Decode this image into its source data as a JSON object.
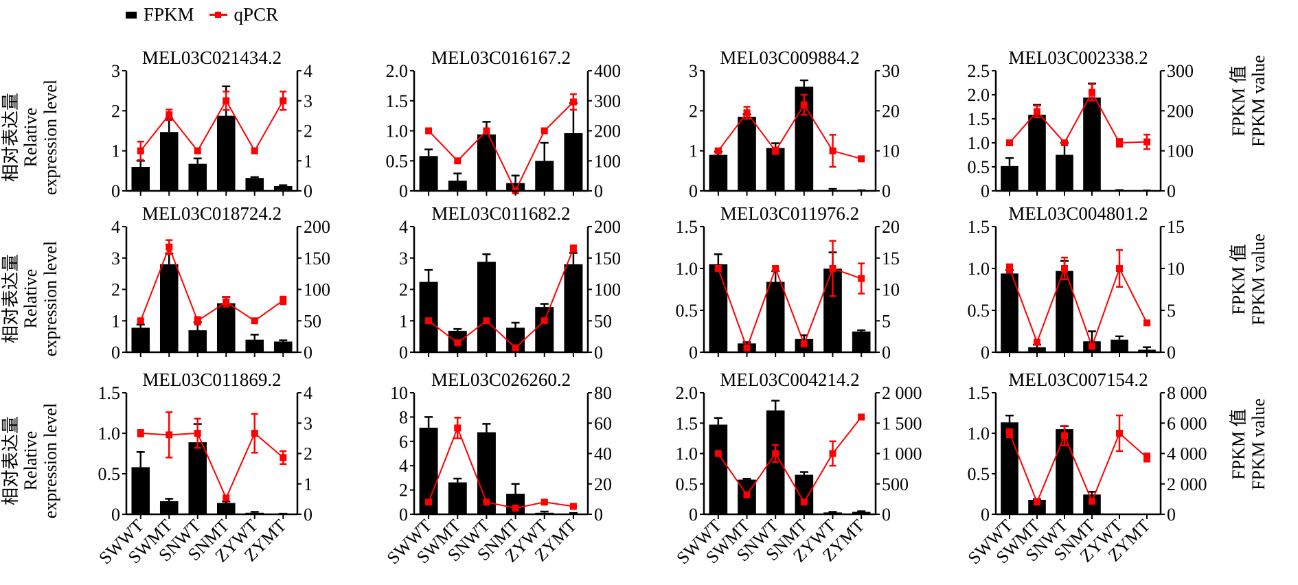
{
  "legend": {
    "bar_label": "FPKM",
    "line_label": "qPCR",
    "bar_color": "#000000",
    "line_color": "#ff0000"
  },
  "axis_titles": {
    "left_cn": "相对表达量",
    "left_en_1": "Relative",
    "left_en_2": "expression level",
    "right_cn": "FPKM 值",
    "right_en": "FPKM value"
  },
  "chart_data": [
    {
      "type": "bar+line",
      "title": "MEL03C021434.2",
      "categories": [
        "SWWT",
        "SWMT",
        "SNWT",
        "SNMT",
        "ZYWT",
        "ZYMT"
      ],
      "left_ticks": [
        "0",
        "1",
        "2",
        "3"
      ],
      "left_ylim": [
        0,
        3
      ],
      "right_ticks": [
        "0",
        "1",
        "2",
        "3",
        "4"
      ],
      "right_ylim": [
        0,
        4
      ],
      "series": [
        {
          "name": "FPKM",
          "axis": "right",
          "type": "bar",
          "values": [
            0.8,
            1.96,
            0.9,
            2.5,
            0.43,
            0.16
          ],
          "errors": [
            0.2,
            0.45,
            0.18,
            0.98,
            0.03,
            0.03
          ]
        },
        {
          "name": "qPCR",
          "axis": "left",
          "type": "line",
          "values": [
            1.0,
            1.9,
            1.0,
            2.25,
            1.0,
            2.25
          ],
          "errors": [
            0.23,
            0.13,
            0.02,
            0.23,
            0.02,
            0.23
          ]
        }
      ]
    },
    {
      "type": "bar+line",
      "title": "MEL03C016167.2",
      "categories": [
        "SWWT",
        "SWMT",
        "SNWT",
        "SNMT",
        "ZYWT",
        "ZYMT"
      ],
      "left_ticks": [
        "0",
        "0.5",
        "1.0",
        "1.5",
        "2.0"
      ],
      "left_ylim": [
        0,
        2
      ],
      "right_ticks": [
        "0",
        "100",
        "200",
        "300",
        "400"
      ],
      "right_ylim": [
        0,
        400
      ],
      "series": [
        {
          "name": "FPKM",
          "axis": "right",
          "type": "bar",
          "values": [
            116,
            34,
            188,
            26,
            100,
            192
          ],
          "errors": [
            22,
            24,
            42,
            25,
            60,
            100
          ]
        },
        {
          "name": "qPCR",
          "axis": "left",
          "type": "line",
          "values": [
            1.0,
            0.5,
            1.0,
            0.0,
            1.0,
            1.48
          ],
          "errors": [
            0.02,
            0.02,
            0.02,
            0.02,
            0.02,
            0.13
          ]
        }
      ]
    },
    {
      "type": "bar+line",
      "title": "MEL03C009884.2",
      "categories": [
        "SWWT",
        "SWMT",
        "SNWT",
        "SNMT",
        "ZYWT",
        "ZYMT"
      ],
      "left_ticks": [
        "0",
        "1",
        "2",
        "3"
      ],
      "left_ylim": [
        0,
        3
      ],
      "right_ticks": [
        "0",
        "10",
        "20",
        "30"
      ],
      "right_ylim": [
        0,
        30
      ],
      "series": [
        {
          "name": "FPKM",
          "axis": "right",
          "type": "bar",
          "values": [
            9,
            18.5,
            10.7,
            26,
            0.1,
            0.05
          ],
          "errors": [
            0.8,
            0.6,
            1.2,
            1.6,
            0.4,
            0.1
          ]
        },
        {
          "name": "qPCR",
          "axis": "left",
          "type": "line",
          "values": [
            1.0,
            1.95,
            1.0,
            2.15,
            1.0,
            0.8
          ],
          "errors": [
            0.05,
            0.15,
            0.08,
            0.25,
            0.4,
            0.04
          ]
        }
      ]
    },
    {
      "type": "bar+line",
      "title": "MEL03C002338.2",
      "categories": [
        "SWWT",
        "SWMT",
        "SNWT",
        "SNMT",
        "ZYWT",
        "ZYMT"
      ],
      "left_ticks": [
        "0",
        "0.5",
        "1.0",
        "1.5",
        "2.0",
        "2.5"
      ],
      "left_ylim": [
        0,
        2.5
      ],
      "right_ticks": [
        "0",
        "100",
        "200",
        "300"
      ],
      "right_ylim": [
        0,
        300
      ],
      "series": [
        {
          "name": "FPKM",
          "axis": "right",
          "type": "bar",
          "values": [
            62,
            190,
            90,
            233,
            1,
            0.5
          ],
          "errors": [
            20,
            25,
            30,
            35,
            1,
            0.5
          ]
        },
        {
          "name": "qPCR",
          "axis": "left",
          "type": "line",
          "values": [
            1.0,
            1.65,
            1.0,
            2.05,
            1.0,
            1.02
          ],
          "errors": [
            0.02,
            0.12,
            0.03,
            0.17,
            0.08,
            0.15
          ]
        }
      ]
    },
    {
      "type": "bar+line",
      "title": "MEL03C018724.2",
      "categories": [
        "SWWT",
        "SWMT",
        "SNWT",
        "SNMT",
        "ZYWT",
        "ZYMT"
      ],
      "left_ticks": [
        "0",
        "1",
        "2",
        "3",
        "4"
      ],
      "left_ylim": [
        0,
        4
      ],
      "right_ticks": [
        "0",
        "50",
        "100",
        "150",
        "200"
      ],
      "right_ylim": [
        0,
        200
      ],
      "series": [
        {
          "name": "FPKM",
          "axis": "right",
          "type": "bar",
          "values": [
            39,
            140,
            35,
            78,
            20,
            17
          ],
          "errors": [
            5,
            17,
            13,
            10,
            8,
            2
          ]
        },
        {
          "name": "qPCR",
          "axis": "left",
          "type": "line",
          "values": [
            1.0,
            3.35,
            1.0,
            1.6,
            1.0,
            1.65
          ],
          "errors": [
            0.05,
            0.22,
            0.12,
            0.15,
            0.05,
            0.12
          ]
        }
      ]
    },
    {
      "type": "bar+line",
      "title": "MEL03C011682.2",
      "categories": [
        "SWWT",
        "SWMT",
        "SNWT",
        "SNMT",
        "ZYWT",
        "ZYMT"
      ],
      "left_ticks": [
        "0",
        "1",
        "2",
        "3",
        "4"
      ],
      "left_ylim": [
        0,
        4
      ],
      "right_ticks": [
        "0",
        "50",
        "100",
        "150",
        "200"
      ],
      "right_ylim": [
        0,
        200
      ],
      "series": [
        {
          "name": "FPKM",
          "axis": "right",
          "type": "bar",
          "values": [
            112,
            34,
            144,
            39,
            72,
            140
          ],
          "errors": [
            19,
            3,
            12,
            8,
            5,
            18
          ]
        },
        {
          "name": "qPCR",
          "axis": "left",
          "type": "line",
          "values": [
            1.0,
            0.3,
            1.0,
            0.14,
            1.0,
            3.3
          ],
          "errors": [
            0.02,
            0.02,
            0.02,
            0.02,
            0.02,
            0.1
          ]
        }
      ]
    },
    {
      "type": "bar+line",
      "title": "MEL03C011976.2",
      "categories": [
        "SWWT",
        "SWMT",
        "SNWT",
        "SNMT",
        "ZYWT",
        "ZYMT"
      ],
      "left_ticks": [
        "0",
        "0.5",
        "1.0",
        "1.5"
      ],
      "left_ylim": [
        0,
        1.5
      ],
      "right_ticks": [
        "0",
        "5",
        "10",
        "15",
        "20"
      ],
      "right_ylim": [
        0,
        20
      ],
      "series": [
        {
          "name": "FPKM",
          "axis": "right",
          "type": "bar",
          "values": [
            14,
            1.4,
            11.2,
            2.1,
            13.3,
            3.3
          ],
          "errors": [
            1.6,
            0.2,
            1.7,
            0.6,
            2.6,
            0.2
          ]
        },
        {
          "name": "qPCR",
          "axis": "left",
          "type": "line",
          "values": [
            1.0,
            0.05,
            1.0,
            0.1,
            1.0,
            0.88
          ],
          "errors": [
            0.02,
            0.02,
            0.02,
            0.02,
            0.33,
            0.18
          ]
        }
      ]
    },
    {
      "type": "bar+line",
      "title": "MEL03C004801.2",
      "categories": [
        "SWWT",
        "SWMT",
        "SNWT",
        "SNMT",
        "ZYWT",
        "ZYMT"
      ],
      "left_ticks": [
        "0",
        "0.5",
        "1.0",
        "1.5"
      ],
      "left_ylim": [
        0,
        1.5
      ],
      "right_ticks": [
        "0",
        "5",
        "10",
        "15"
      ],
      "right_ylim": [
        0,
        15
      ],
      "series": [
        {
          "name": "FPKM",
          "axis": "right",
          "type": "bar",
          "values": [
            9.4,
            0.6,
            9.7,
            1.3,
            1.5,
            0.3
          ],
          "errors": [
            0.4,
            0.3,
            1.2,
            1.2,
            0.4,
            0.3
          ]
        },
        {
          "name": "qPCR",
          "axis": "left",
          "type": "line",
          "values": [
            1.0,
            0.12,
            1.0,
            0.07,
            1.0,
            0.35
          ],
          "errors": [
            0.05,
            0.03,
            0.13,
            0.02,
            0.22,
            0.02
          ]
        }
      ]
    },
    {
      "type": "bar+line",
      "title": "MEL03C011869.2",
      "categories": [
        "SWWT",
        "SWMT",
        "SNWT",
        "SNMT",
        "ZYWT",
        "ZYMT"
      ],
      "left_ticks": [
        "0",
        "0.5",
        "1.0",
        "1.5"
      ],
      "left_ylim": [
        0,
        1.5
      ],
      "right_ticks": [
        "0",
        "1",
        "2",
        "3",
        "4"
      ],
      "right_ylim": [
        0,
        4
      ],
      "series": [
        {
          "name": "FPKM",
          "axis": "right",
          "type": "bar",
          "values": [
            1.55,
            0.43,
            2.37,
            0.37,
            0.05,
            0.01
          ],
          "errors": [
            0.5,
            0.08,
            0.6,
            0.05,
            0.03,
            0.01
          ]
        },
        {
          "name": "qPCR",
          "axis": "left",
          "type": "line",
          "values": [
            1.0,
            0.98,
            1.0,
            0.2,
            1.0,
            0.7
          ],
          "errors": [
            0.04,
            0.28,
            0.18,
            0.03,
            0.24,
            0.08
          ]
        }
      ]
    },
    {
      "type": "bar+line",
      "title": "MEL03C026260.2",
      "categories": [
        "SWWT",
        "SWMT",
        "SNWT",
        "SNMT",
        "ZYWT",
        "ZYMT"
      ],
      "left_ticks": [
        "0",
        "2",
        "4",
        "6",
        "8",
        "10"
      ],
      "left_ylim": [
        0,
        10
      ],
      "right_ticks": [
        "0",
        "20",
        "40",
        "60",
        "80"
      ],
      "right_ylim": [
        0,
        80
      ],
      "series": [
        {
          "name": "FPKM",
          "axis": "right",
          "type": "bar",
          "values": [
            57,
            21,
            54,
            13.5,
            1,
            0.3
          ],
          "errors": [
            7,
            2.5,
            5.5,
            6.5,
            0.8,
            0.5
          ]
        },
        {
          "name": "qPCR",
          "axis": "left",
          "type": "line",
          "values": [
            1.0,
            7.1,
            1.0,
            0.5,
            1.0,
            0.65
          ],
          "errors": [
            0.05,
            0.85,
            0.1,
            0.05,
            0.15,
            0.05
          ]
        }
      ]
    },
    {
      "type": "bar+line",
      "title": "MEL03C004214.2",
      "categories": [
        "SWWT",
        "SWMT",
        "SNWT",
        "SNMT",
        "ZYWT",
        "ZYMT"
      ],
      "left_ticks": [
        "0",
        "0.5",
        "1.0",
        "1.5",
        "2.0"
      ],
      "left_ylim": [
        0,
        2
      ],
      "right_ticks": [
        "0",
        "500",
        "1 000",
        "1 500",
        "2 000"
      ],
      "right_ylim": [
        0,
        2000
      ],
      "series": [
        {
          "name": "FPKM",
          "axis": "right",
          "type": "bar",
          "values": [
            1475,
            570,
            1710,
            650,
            30,
            40
          ],
          "errors": [
            110,
            15,
            160,
            45,
            10,
            10
          ]
        },
        {
          "name": "qPCR",
          "axis": "left",
          "type": "line",
          "values": [
            1.0,
            0.32,
            1.0,
            0.2,
            1.0,
            1.6
          ],
          "errors": [
            0.02,
            0.02,
            0.14,
            0.02,
            0.2,
            0.04
          ]
        }
      ]
    },
    {
      "type": "bar+line",
      "title": "MEL03C007154.2",
      "categories": [
        "SWWT",
        "SWMT",
        "SNWT",
        "SNMT",
        "ZYWT",
        "ZYMT"
      ],
      "left_ticks": [
        "0",
        "0.5",
        "1.0",
        "1.5"
      ],
      "left_ylim": [
        0,
        1.5
      ],
      "right_ticks": [
        "0",
        "2 000",
        "4 000",
        "6 000",
        "8 000"
      ],
      "right_ylim": [
        0,
        8000
      ],
      "series": [
        {
          "name": "FPKM",
          "axis": "right",
          "type": "bar",
          "values": [
            6050,
            950,
            5600,
            1300,
            0,
            0
          ],
          "errors": [
            450,
            50,
            200,
            180,
            0,
            0
          ]
        },
        {
          "name": "qPCR",
          "axis": "left",
          "type": "line",
          "values": [
            1.0,
            0.15,
            0.97,
            0.16,
            1.0,
            0.7
          ],
          "errors": [
            0.05,
            0.02,
            0.12,
            0.02,
            0.22,
            0.05
          ]
        }
      ]
    }
  ]
}
